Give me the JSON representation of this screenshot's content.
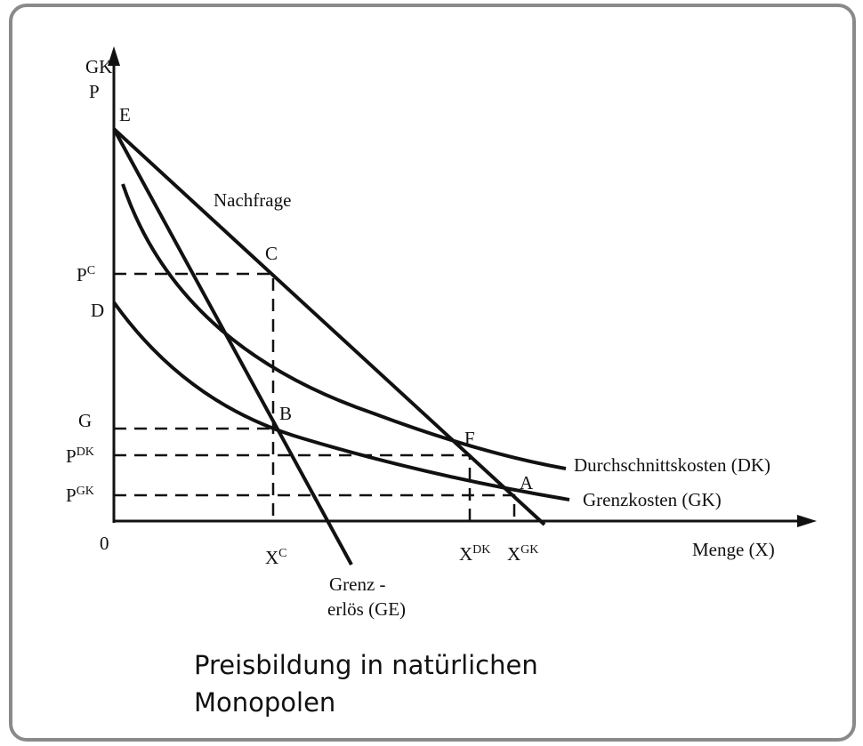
{
  "axes": {
    "y_top": "GK",
    "y_bottom": "P",
    "origin": "0",
    "x": "Menge (X)"
  },
  "points": {
    "E": "E",
    "C": "C",
    "D": "D",
    "B": "B",
    "F": "F",
    "A": "A"
  },
  "curves": {
    "demand": "Nachfrage",
    "average_cost": "Durchschnittskosten (DK)",
    "marginal_cost": "Grenzkosten (GK)",
    "marginal_revenue": [
      "Grenz -",
      "erlös (GE)"
    ]
  },
  "y_labels": [
    {
      "base": "P",
      "sup": "C"
    },
    {
      "base": "G"
    },
    {
      "base": "P",
      "sup": "DK"
    },
    {
      "base": "P",
      "sup": "GK"
    }
  ],
  "x_labels": [
    {
      "base": "X",
      "sup": "C"
    },
    {
      "base": "X",
      "sup": "DK"
    },
    {
      "base": "X",
      "sup": "GK"
    }
  ],
  "caption": [
    "Preisbildung in natürlichen",
    "Monopolen"
  ]
}
